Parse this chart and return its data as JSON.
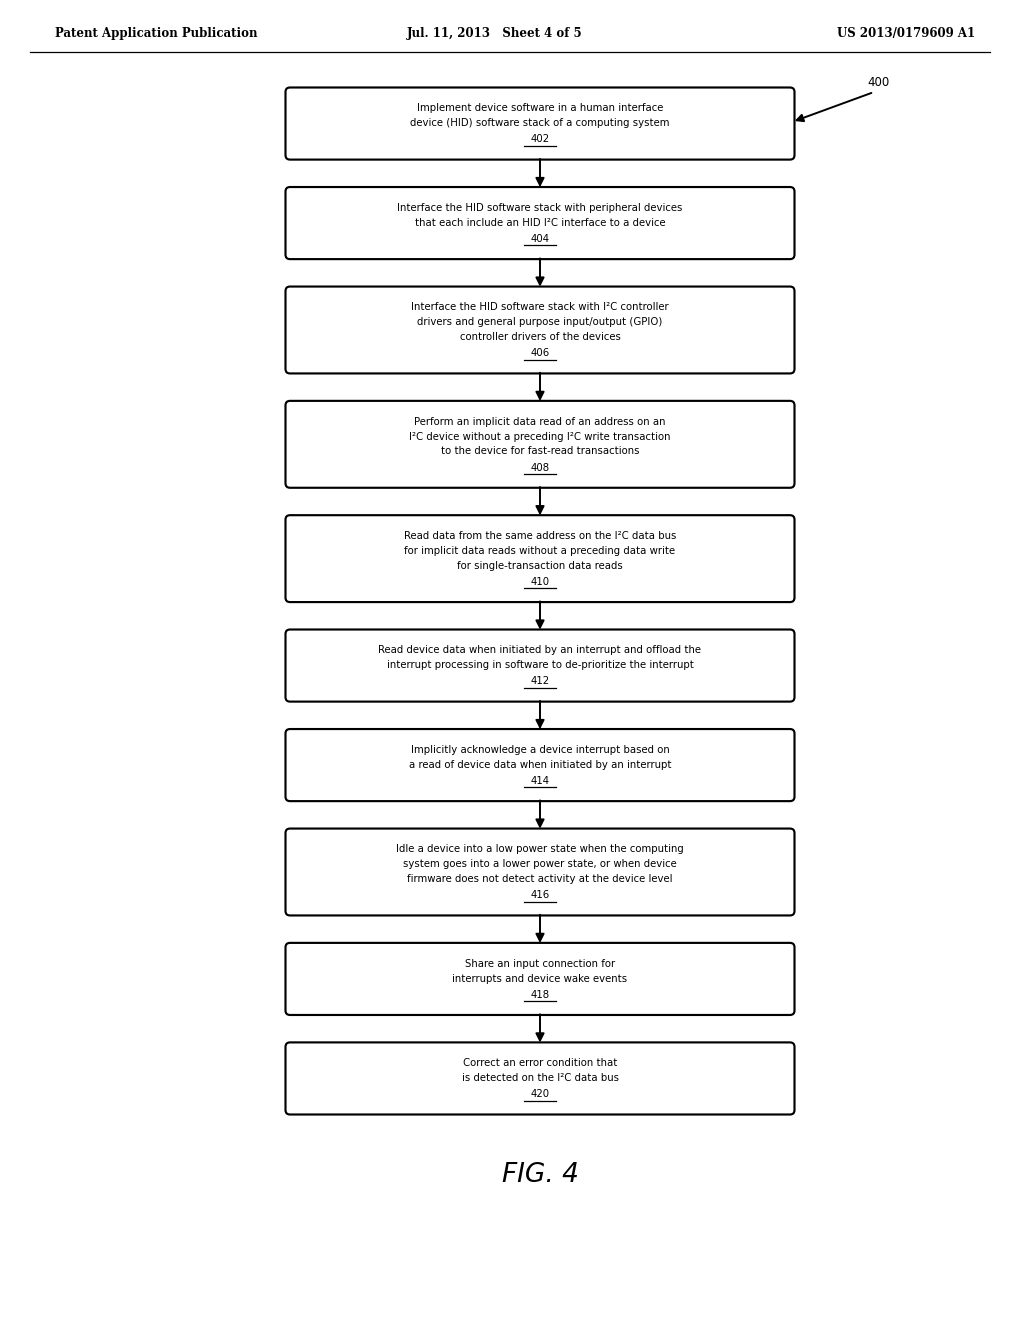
{
  "background_color": "#ffffff",
  "header_left": "Patent Application Publication",
  "header_center": "Jul. 11, 2013   Sheet 4 of 5",
  "header_right": "US 2013/0179609 A1",
  "figure_label": "FIG. 4",
  "label_ref": "400",
  "boxes": [
    {
      "lines": [
        "Implement device software in a human interface",
        "device (HID) software stack of a computing system"
      ],
      "label": "402",
      "n_lines": 2
    },
    {
      "lines": [
        "Interface the HID software stack with peripheral devices",
        "that each include an HID I²C interface to a device"
      ],
      "label": "404",
      "n_lines": 2
    },
    {
      "lines": [
        "Interface the HID software stack with I²C controller",
        "drivers and general purpose input/output (GPIO)",
        "controller drivers of the devices"
      ],
      "label": "406",
      "n_lines": 3
    },
    {
      "lines": [
        "Perform an implicit data read of an address on an",
        "I²C device without a preceding I²C write transaction",
        "to the device for fast-read transactions"
      ],
      "label": "408",
      "n_lines": 3
    },
    {
      "lines": [
        "Read data from the same address on the I²C data bus",
        "for implicit data reads without a preceding data write",
        "for single-transaction data reads"
      ],
      "label": "410",
      "n_lines": 3
    },
    {
      "lines": [
        "Read device data when initiated by an interrupt and offload the",
        "interrupt processing in software to de-prioritize the interrupt"
      ],
      "label": "412",
      "n_lines": 2
    },
    {
      "lines": [
        "Implicitly acknowledge a device interrupt based on",
        "a read of device data when initiated by an interrupt"
      ],
      "label": "414",
      "n_lines": 2
    },
    {
      "lines": [
        "Idle a device into a low power state when the computing",
        "system goes into a lower power state, or when device",
        "firmware does not detect activity at the device level"
      ],
      "label": "416",
      "n_lines": 3
    },
    {
      "lines": [
        "Share an input connection for",
        "interrupts and device wake events"
      ],
      "label": "418",
      "n_lines": 2
    },
    {
      "lines": [
        "Correct an error condition that",
        "is detected on the I²C data bus"
      ],
      "label": "420",
      "n_lines": 2
    }
  ]
}
